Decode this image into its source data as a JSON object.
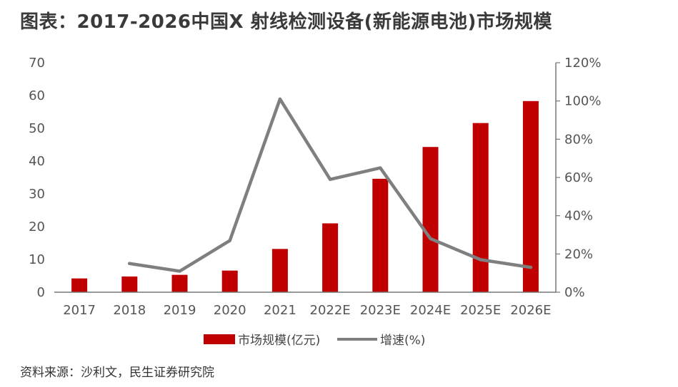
{
  "title": "图表：2017-2026中国X 射线检测设备(新能源电池)市场规模",
  "source": "资料来源：沙利文，民生证券研究院",
  "chart_data": {
    "type": "bar",
    "categories": [
      "2017",
      "2018",
      "2019",
      "2020",
      "2021",
      "2022E",
      "2023E",
      "2024E",
      "2025E",
      "2026E"
    ],
    "series": [
      {
        "name": "市场规模(亿元)",
        "type": "bar",
        "axis": "left",
        "color": "#c00000",
        "values": [
          4.2,
          4.8,
          5.3,
          6.6,
          13.2,
          21.0,
          34.6,
          44.3,
          51.6,
          58.3
        ]
      },
      {
        "name": "增速(%)",
        "type": "line",
        "axis": "right",
        "color": "#7f7f7f",
        "values": [
          null,
          15,
          11,
          27,
          101,
          59,
          65,
          28,
          17,
          13
        ]
      }
    ],
    "y_left": {
      "min": 0,
      "max": 70,
      "ticks": [
        "0",
        "10",
        "20",
        "30",
        "40",
        "50",
        "60",
        "70"
      ]
    },
    "y_right": {
      "min": 0,
      "max": 120,
      "ticks": [
        "0%",
        "20%",
        "40%",
        "60%",
        "80%",
        "100%",
        "120%"
      ]
    },
    "legend": "bottom",
    "grid": false
  }
}
